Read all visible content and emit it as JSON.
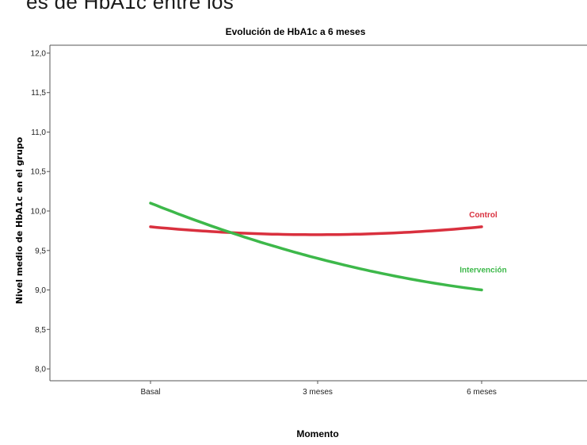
{
  "page_fragment_text": "es de HbA1c entre los",
  "chart_data": {
    "type": "line",
    "title": "Evolución de HbA1c a 6 meses",
    "xlabel": "Momento",
    "ylabel": "Nivel medio de HbA1c en el grupo",
    "categories": [
      "Basal",
      "3 meses",
      "6 meses"
    ],
    "ylim": [
      7.85,
      12.1
    ],
    "yticks": [
      "8,0",
      "8,5",
      "9,0",
      "9,5",
      "10,0",
      "10,5",
      "11,0",
      "11,5",
      "12,0"
    ],
    "ytick_values": [
      8.0,
      8.5,
      9.0,
      9.5,
      10.0,
      10.5,
      11.0,
      11.5,
      12.0
    ],
    "grid": false,
    "series": [
      {
        "name": "Control",
        "values": [
          9.8,
          9.7,
          9.8
        ],
        "color": "#d9303e"
      },
      {
        "name": "Intervención",
        "values": [
          10.1,
          9.4,
          9.0
        ],
        "color": "#3db84a"
      }
    ]
  }
}
